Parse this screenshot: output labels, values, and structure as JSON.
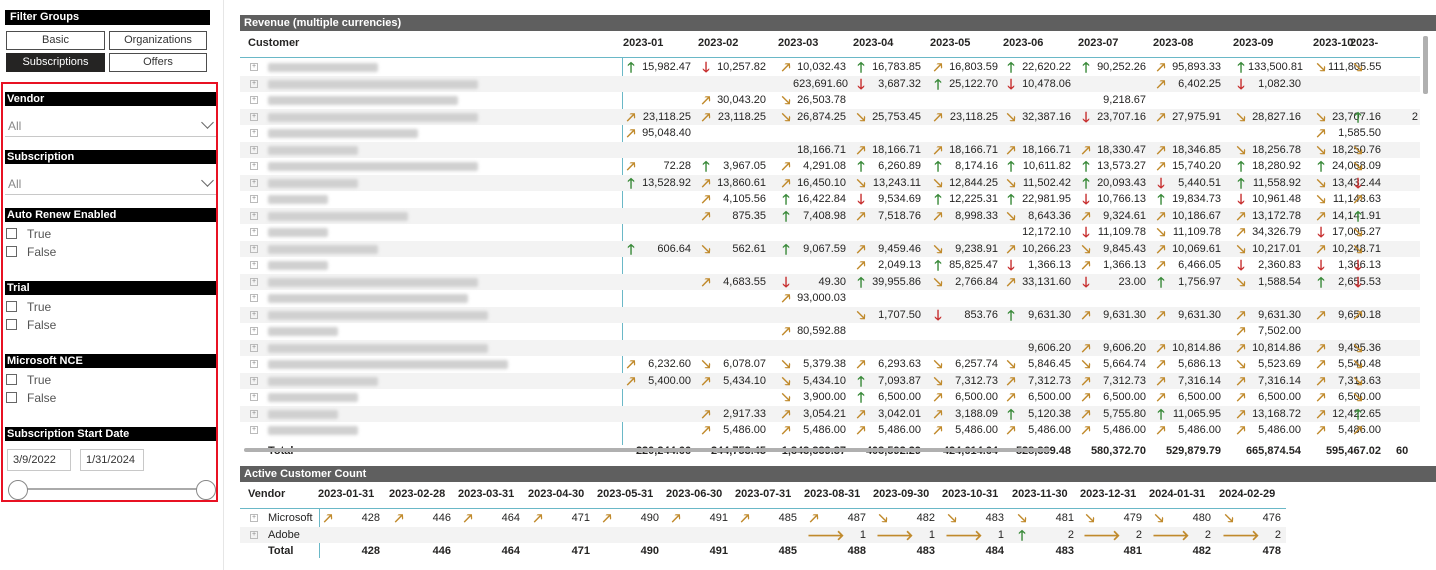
{
  "sidebar": {
    "filter_groups_title": "Filter Groups",
    "buttons": [
      {
        "label": "Basic",
        "active": false
      },
      {
        "label": "Organizations",
        "active": false
      },
      {
        "label": "Subscriptions",
        "active": true
      },
      {
        "label": "Offers",
        "active": false
      }
    ],
    "vendor": {
      "title": "Vendor",
      "value": "All"
    },
    "subscription": {
      "title": "Subscription",
      "value": "All"
    },
    "auto_renew": {
      "title": "Auto Renew Enabled",
      "options": [
        "True",
        "False"
      ]
    },
    "trial": {
      "title": "Trial",
      "options": [
        "True",
        "False"
      ]
    },
    "nce": {
      "title": "Microsoft NCE",
      "options": [
        "True",
        "False"
      ]
    },
    "start_date": {
      "title": "Subscription Start Date",
      "from": "3/9/2022",
      "to": "1/31/2024"
    }
  },
  "revenue": {
    "title": "Revenue (multiple currencies)",
    "customer_header": "Customer",
    "months": [
      "2023-01",
      "2023-02",
      "2023-03",
      "2023-04",
      "2023-05",
      "2023-06",
      "2023-07",
      "2023-08",
      "2023-09",
      "2023-10",
      "2023-"
    ],
    "rows": [
      [
        "u 15,982.47",
        "d 10,257.82",
        "r 10,032.43",
        "u 16,783.85",
        "r 16,803.59",
        "u 22,620.22",
        "u 90,252.26",
        "r 95,893.33",
        "u 133,500.81",
        "dr 111,805.55",
        "dr"
      ],
      [
        "",
        "",
        " 623,691.60",
        "d 3,687.32",
        "u 25,122.70",
        "d 10,478.06",
        "",
        "r 6,402.25",
        "d 1,082.30",
        "",
        ""
      ],
      [
        "",
        "r 30,043.20",
        "dr 26,503.78",
        "",
        "",
        "",
        " 9,218.67",
        "",
        "",
        "",
        ""
      ],
      [
        "r 23,118.25",
        "r 23,118.25",
        "dr 26,874.25",
        "dr 25,753.45",
        "r 23,118.25",
        "dr 32,387.16",
        "d 23,707.16",
        "r 27,975.91",
        "dr 28,827.16",
        "dr 23,707.16",
        "u 2"
      ],
      [
        "r 95,048.40",
        "",
        "",
        "",
        "",
        "",
        "",
        "",
        "",
        "r 1,585.50",
        ""
      ],
      [
        "",
        "",
        " 18,166.71",
        "r 18,166.71",
        "r 18,166.71",
        "r 18,166.71",
        "r 18,330.47",
        "r 18,346.85",
        "dr 18,256.78",
        "dr 18,250.76",
        "dr"
      ],
      [
        "r 72.28",
        "u 3,967.05",
        "r 4,291.08",
        "u 6,260.89",
        "u 8,174.16",
        "u 10,611.82",
        "u 13,573.27",
        "r 15,740.20",
        "u 18,280.92",
        "u 24,068.09",
        "dr"
      ],
      [
        "u 13,528.92",
        "r 13,860.61",
        "r 16,450.10",
        "dr 13,243.11",
        "dr 12,844.25",
        "dr 11,502.42",
        "u 20,093.43",
        "d 5,440.51",
        "u 11,558.92",
        "dr 13,432.44",
        "d"
      ],
      [
        "",
        "r 4,105.56",
        "u 16,422.84",
        "d 9,534.69",
        "u 12,225.31",
        "u 22,981.95",
        "d 10,766.13",
        "u 19,834.73",
        "d 10,961.48",
        "dr 11,143.63",
        "r"
      ],
      [
        "",
        "r 875.35",
        "u 7,408.98",
        "r 7,518.76",
        "r 8,998.33",
        "dr 8,643.36",
        "r 9,324.61",
        "r 10,186.67",
        "r 13,172.78",
        "r 14,141.91",
        "u"
      ],
      [
        "",
        "",
        "",
        "",
        "",
        " 12,172.10",
        "d 11,109.78",
        "dr 11,109.78",
        "r 34,326.79",
        "d 17,005.27",
        "dr"
      ],
      [
        "u 606.64",
        "dr 562.61",
        "u 9,067.59",
        "r 9,459.46",
        "dr 9,238.91",
        "r 10,266.23",
        "dr 9,845.43",
        "r 10,069.61",
        "dr 10,217.01",
        "r 10,248.71",
        "dr"
      ],
      [
        "",
        "",
        "",
        "r 2,049.13",
        "u 85,825.47",
        "d 1,366.13",
        "r 1,366.13",
        "r 6,466.05",
        "d 2,360.83",
        "d 1,366.13",
        "d"
      ],
      [
        "",
        "r 4,683.55",
        "d 49.30",
        "u 39,955.86",
        "dr 2,766.84",
        "r 33,131.60",
        "d 23.00",
        "u 1,756.97",
        "dr 1,588.54",
        "u 2,655.53",
        "d"
      ],
      [
        "",
        "",
        "r 93,000.03",
        "",
        "",
        "",
        "",
        "",
        "",
        "",
        ""
      ],
      [
        "",
        "",
        "",
        "dr 1,707.50",
        "d 853.76",
        "u 9,631.30",
        "r 9,631.30",
        "r 9,631.30",
        "r 9,631.30",
        "r 9,650.18",
        "r"
      ],
      [
        "",
        "",
        "r 80,592.88",
        "",
        "",
        "",
        "",
        "",
        "r 7,502.00",
        "",
        ""
      ],
      [
        "",
        "",
        "",
        "",
        "",
        " 9,606.20",
        "r 9,606.20",
        "r 10,814.86",
        "r 10,814.86",
        "r 9,495.36",
        "dr"
      ],
      [
        "r 6,232.60",
        "dr 6,078.07",
        "dr 5,379.38",
        "r 6,293.63",
        "dr 6,257.74",
        "dr 5,846.45",
        "dr 5,664.74",
        "r 5,686.13",
        "dr 5,523.69",
        "r 5,540.48",
        "dr"
      ],
      [
        "r 5,400.00",
        "r 5,434.10",
        "dr 5,434.10",
        "u 7,093.87",
        "dr 7,312.73",
        "r 7,312.73",
        "r 7,312.73",
        "r 7,316.14",
        "r 7,316.14",
        "r 7,313.63",
        "dr"
      ],
      [
        "",
        "",
        "dr 3,900.00",
        "u 6,500.00",
        "r 6,500.00",
        "r 6,500.00",
        "r 6,500.00",
        "r 6,500.00",
        "r 6,500.00",
        "r 6,500.00",
        "dr"
      ],
      [
        "",
        "r 2,917.33",
        "r 3,054.21",
        "r 3,042.01",
        "r 3,188.09",
        "u 5,120.38",
        "r 5,755.80",
        "u 11,065.95",
        "r 13,168.72",
        "r 12,422.65",
        "u"
      ],
      [
        "",
        "r 5,486.00",
        "r 5,486.00",
        "r 5,486.00",
        "r 5,486.00",
        "r 5,486.00",
        "r 5,486.00",
        "r 5,486.00",
        "r 5,486.00",
        "r 5,486.00",
        "r"
      ]
    ],
    "total_label": "Total",
    "totals": [
      "220,244.66",
      "244,753.45",
      "1,343,339.37",
      "403,592.29",
      "424,614.64",
      "528,389.48",
      "580,372.70",
      "529,879.79",
      "665,874.54",
      "595,467.02",
      "60"
    ]
  },
  "active": {
    "title": "Active Customer Count",
    "vendor_header": "Vendor",
    "dates": [
      "2023-01-31",
      "2023-02-28",
      "2023-03-31",
      "2023-04-30",
      "2023-05-31",
      "2023-06-30",
      "2023-07-31",
      "2023-08-31",
      "2023-09-30",
      "2023-10-31",
      "2023-11-30",
      "2023-12-31",
      "2024-01-31",
      "2024-02-29"
    ],
    "rows": [
      {
        "name": "Microsoft",
        "cells": [
          "r 428",
          "r 446",
          "r 464",
          "r 471",
          "r 490",
          "r 491",
          "r 485",
          "r 487",
          "dr 482",
          "dr 483",
          "dr 481",
          "dr 479",
          "dr 480",
          "dr 476"
        ]
      },
      {
        "name": "Adobe",
        "cells": [
          "",
          "",
          "",
          "",
          "",
          "",
          "",
          "h 1",
          "h 1",
          "h 1",
          "u 2",
          "h 2",
          "h 2",
          "h 2"
        ]
      }
    ],
    "total_label": "Total",
    "totals": [
      "428",
      "446",
      "464",
      "471",
      "490",
      "491",
      "485",
      "488",
      "483",
      "484",
      "483",
      "481",
      "482",
      "478"
    ]
  }
}
